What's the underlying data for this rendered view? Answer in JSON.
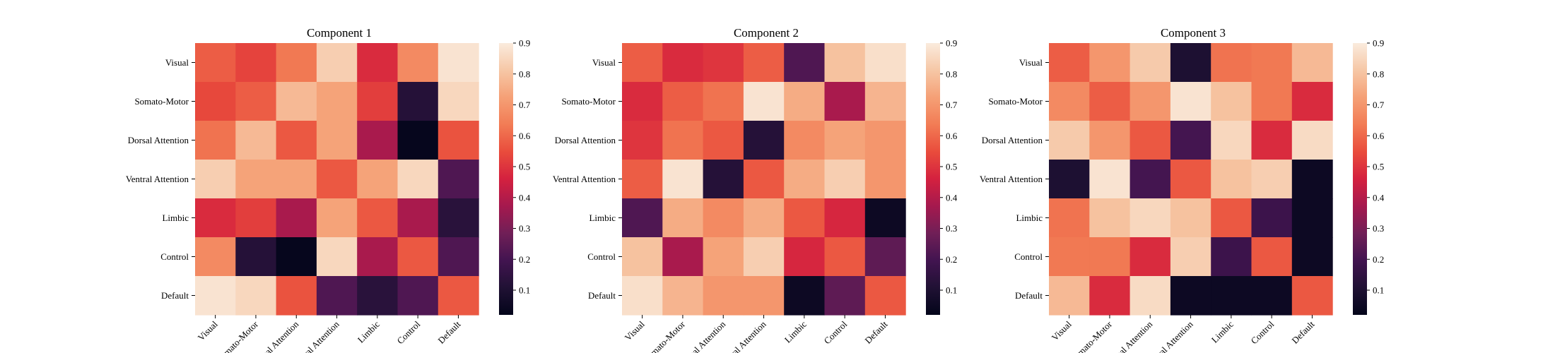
{
  "chart_data": [
    {
      "type": "heatmap",
      "title": "Component 1",
      "x_categories": [
        "Visual",
        "Somato-Motor",
        "Dorsal Attention",
        "Ventral Attention",
        "Limbic",
        "Control",
        "Default"
      ],
      "y_categories": [
        "Visual",
        "Somato-Motor",
        "Dorsal Attention",
        "Ventral Attention",
        "Limbic",
        "Control",
        "Default"
      ],
      "values": [
        [
          0.58,
          0.53,
          0.63,
          0.83,
          0.48,
          0.67,
          0.88
        ],
        [
          0.54,
          0.58,
          0.78,
          0.73,
          0.52,
          0.12,
          0.85
        ],
        [
          0.62,
          0.78,
          0.57,
          0.73,
          0.38,
          0.03,
          0.56
        ],
        [
          0.83,
          0.73,
          0.73,
          0.57,
          0.73,
          0.85,
          0.22
        ],
        [
          0.48,
          0.52,
          0.38,
          0.73,
          0.57,
          0.38,
          0.13
        ],
        [
          0.67,
          0.12,
          0.03,
          0.85,
          0.38,
          0.57,
          0.22
        ],
        [
          0.88,
          0.85,
          0.56,
          0.22,
          0.13,
          0.22,
          0.57
        ]
      ],
      "colorbar": {
        "ticks": [
          0.1,
          0.2,
          0.3,
          0.4,
          0.5,
          0.6,
          0.7,
          0.8,
          0.9
        ],
        "range": [
          0.02,
          0.9
        ]
      }
    },
    {
      "type": "heatmap",
      "title": "Component 2",
      "x_categories": [
        "Visual",
        "Somato-Motor",
        "Dorsal Attention",
        "Ventral Attention",
        "Limbic",
        "Control",
        "Default"
      ],
      "y_categories": [
        "Visual",
        "Somato-Motor",
        "Dorsal Attention",
        "Ventral Attention",
        "Limbic",
        "Control",
        "Default"
      ],
      "values": [
        [
          0.58,
          0.48,
          0.5,
          0.58,
          0.22,
          0.8,
          0.87
        ],
        [
          0.48,
          0.58,
          0.62,
          0.88,
          0.75,
          0.38,
          0.77
        ],
        [
          0.5,
          0.62,
          0.57,
          0.12,
          0.67,
          0.73,
          0.7
        ],
        [
          0.58,
          0.88,
          0.12,
          0.57,
          0.75,
          0.83,
          0.7
        ],
        [
          0.22,
          0.75,
          0.67,
          0.75,
          0.57,
          0.47,
          0.05
        ],
        [
          0.8,
          0.38,
          0.73,
          0.83,
          0.47,
          0.57,
          0.25
        ],
        [
          0.87,
          0.77,
          0.7,
          0.7,
          0.05,
          0.25,
          0.57
        ]
      ],
      "colorbar": {
        "ticks": [
          0.1,
          0.2,
          0.3,
          0.4,
          0.5,
          0.6,
          0.7,
          0.8,
          0.9
        ],
        "range": [
          0.02,
          0.9
        ]
      }
    },
    {
      "type": "heatmap",
      "title": "Component 3",
      "x_categories": [
        "Visual",
        "Somato-Motor",
        "Dorsal Attention",
        "Ventral Attention",
        "Limbic",
        "Control",
        "Default"
      ],
      "y_categories": [
        "Visual",
        "Somato-Motor",
        "Dorsal Attention",
        "Ventral Attention",
        "Limbic",
        "Control",
        "Default"
      ],
      "values": [
        [
          0.58,
          0.7,
          0.82,
          0.1,
          0.62,
          0.63,
          0.78
        ],
        [
          0.67,
          0.58,
          0.7,
          0.88,
          0.8,
          0.63,
          0.48
        ],
        [
          0.82,
          0.7,
          0.57,
          0.2,
          0.85,
          0.48,
          0.86
        ],
        [
          0.1,
          0.88,
          0.2,
          0.57,
          0.8,
          0.83,
          0.05
        ],
        [
          0.62,
          0.8,
          0.85,
          0.8,
          0.57,
          0.18,
          0.05
        ],
        [
          0.63,
          0.63,
          0.48,
          0.83,
          0.18,
          0.57,
          0.05
        ],
        [
          0.78,
          0.48,
          0.86,
          0.05,
          0.05,
          0.05,
          0.57
        ]
      ],
      "colorbar": {
        "ticks": [
          0.1,
          0.2,
          0.3,
          0.4,
          0.5,
          0.6,
          0.7,
          0.8,
          0.9
        ],
        "range": [
          0.02,
          0.9
        ]
      }
    }
  ]
}
